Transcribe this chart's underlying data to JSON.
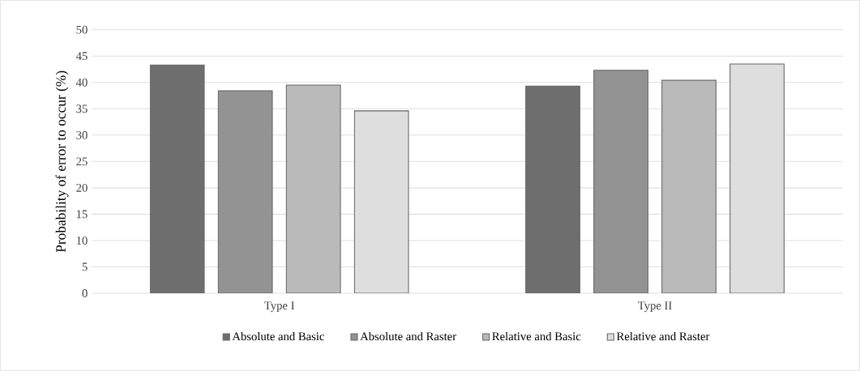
{
  "chart_data": {
    "type": "bar",
    "ylabel": "Probability of error to occur (%)",
    "categories": [
      "Type I",
      "Type II"
    ],
    "series": [
      {
        "name": "Absolute and Basic",
        "color": "#6e6e6e",
        "values": [
          43.3,
          39.3
        ]
      },
      {
        "name": "Absolute and Raster",
        "color": "#939393",
        "values": [
          38.4,
          42.3
        ]
      },
      {
        "name": "Relative and Basic",
        "color": "#bababa",
        "values": [
          39.5,
          40.4
        ]
      },
      {
        "name": "Relative and Raster",
        "color": "#dedede",
        "values": [
          34.6,
          43.5
        ]
      }
    ],
    "ylim": [
      0,
      50
    ],
    "yticks": [
      0,
      5,
      10,
      15,
      20,
      25,
      30,
      35,
      40,
      45,
      50
    ],
    "grid": "y",
    "legend": "bottom"
  }
}
